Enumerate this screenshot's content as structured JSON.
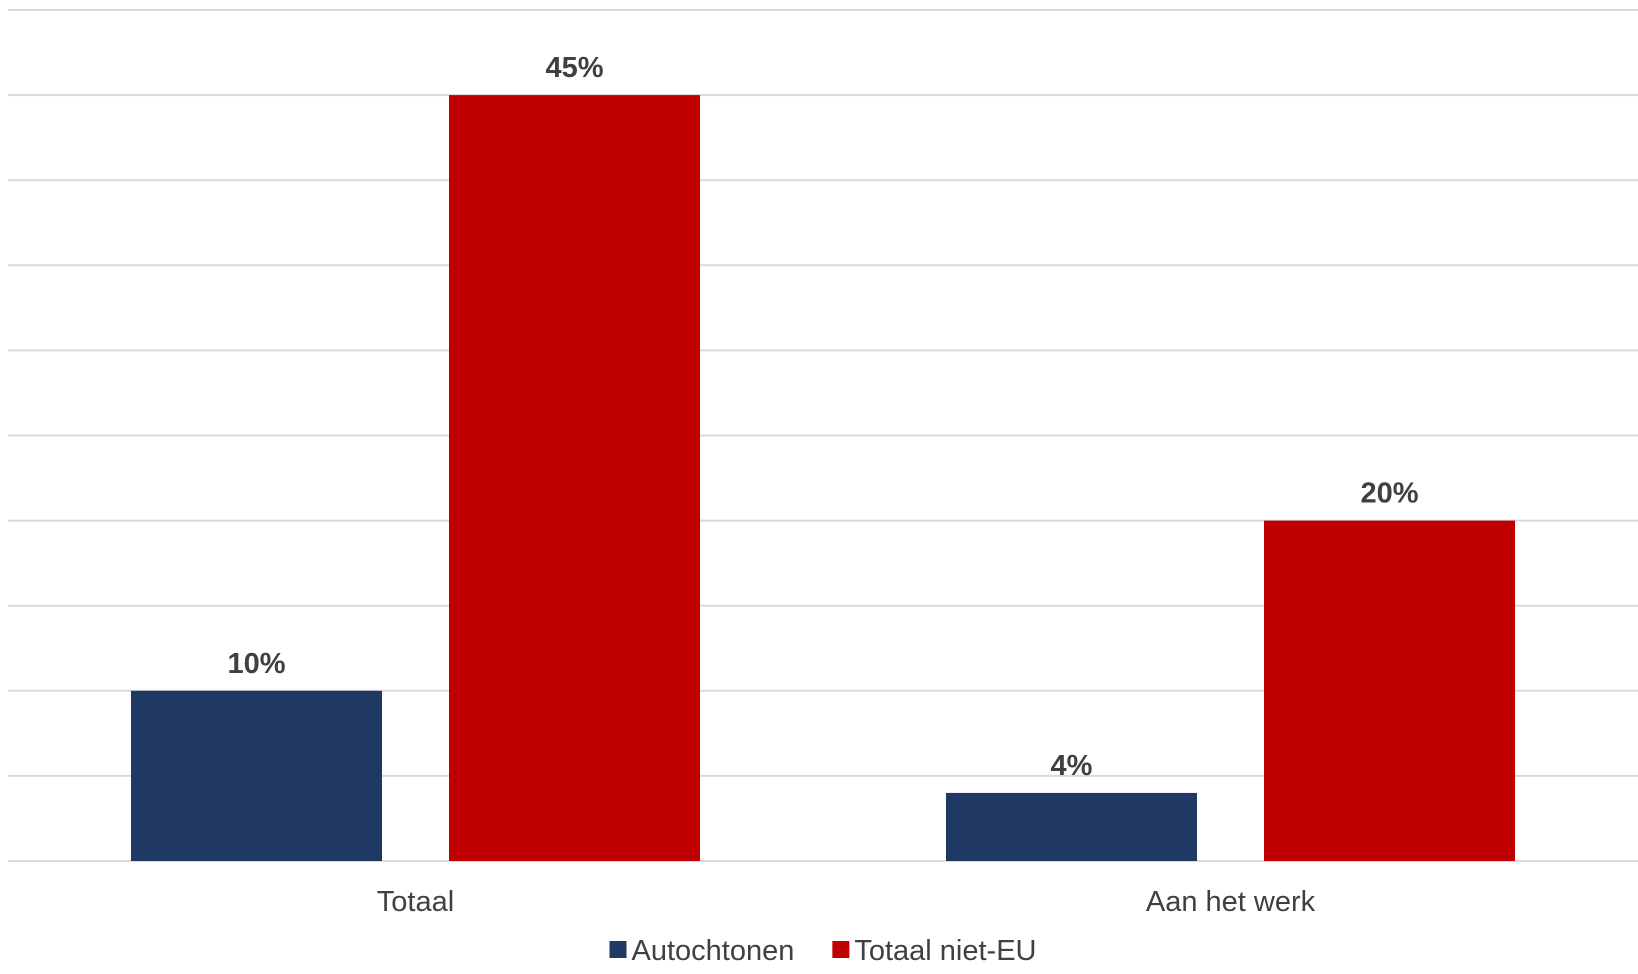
{
  "chart_data": {
    "type": "bar",
    "categories": [
      "Totaal",
      "Aan het werk"
    ],
    "series": [
      {
        "name": "Autochtonen",
        "color": "#203864",
        "values": [
          10,
          4
        ],
        "labels": [
          "10%",
          "4%"
        ]
      },
      {
        "name": "Totaal niet-EU",
        "color": "#C00000",
        "values": [
          45,
          20
        ],
        "labels": [
          "45%",
          "20%"
        ]
      }
    ],
    "ylim": [
      0,
      50
    ],
    "grid": true,
    "legend_position": "bottom",
    "gridline_color": "#d9d9d9",
    "text_color": "#404040"
  }
}
